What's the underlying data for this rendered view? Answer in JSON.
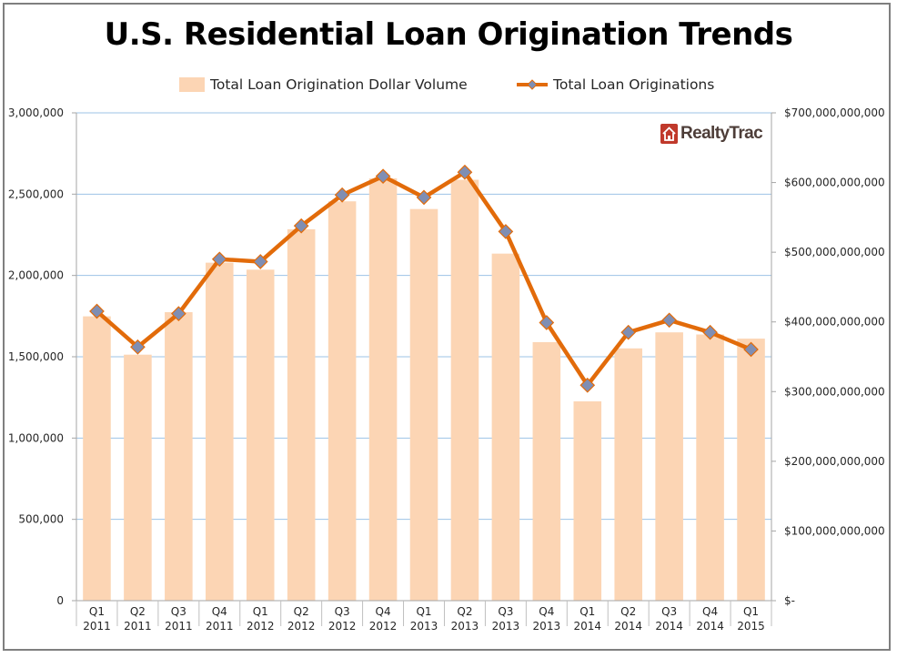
{
  "brand": "RealtyTrac",
  "chart_data": {
    "type": "bar+line",
    "title": "U.S. Residential Loan Origination Trends",
    "categories": [
      [
        "Q1",
        "2011"
      ],
      [
        "Q2",
        "2011"
      ],
      [
        "Q3",
        "2011"
      ],
      [
        "Q4",
        "2011"
      ],
      [
        "Q1",
        "2012"
      ],
      [
        "Q2",
        "2012"
      ],
      [
        "Q3",
        "2012"
      ],
      [
        "Q4",
        "2012"
      ],
      [
        "Q1",
        "2013"
      ],
      [
        "Q2",
        "2013"
      ],
      [
        "Q3",
        "2013"
      ],
      [
        "Q4",
        "2013"
      ],
      [
        "Q1",
        "2014"
      ],
      [
        "Q2",
        "2014"
      ],
      [
        "Q3",
        "2014"
      ],
      [
        "Q4",
        "2014"
      ],
      [
        "Q1",
        "2015"
      ]
    ],
    "series": [
      {
        "name": "Total Loan Origination Dollar Volume",
        "type": "bar",
        "axis": "right",
        "color": "#fcd5b4",
        "values": [
          408000000000,
          353000000000,
          414000000000,
          485000000000,
          475000000000,
          533000000000,
          573000000000,
          606000000000,
          562000000000,
          604000000000,
          498000000000,
          371000000000,
          286000000000,
          362000000000,
          385000000000,
          382000000000,
          376000000000
        ]
      },
      {
        "name": "Total Loan Originations",
        "type": "line",
        "axis": "left",
        "color": "#e26b0a",
        "marker_color": "#7f8eb3",
        "values": [
          1780000,
          1560000,
          1765000,
          2100000,
          2085000,
          2305000,
          2495000,
          2610000,
          2480000,
          2635000,
          2270000,
          1710000,
          1325000,
          1650000,
          1725000,
          1650000,
          1545000
        ]
      }
    ],
    "y_left": {
      "range": [
        0,
        3000000
      ],
      "ticks": [
        0,
        500000,
        1000000,
        1500000,
        2000000,
        2500000,
        3000000
      ],
      "tick_labels": [
        "0",
        "500,000",
        "1,000,000",
        "1,500,000",
        "2,000,000",
        "2,500,000",
        "3,000,000"
      ]
    },
    "y_right": {
      "range": [
        0,
        700000000000
      ],
      "ticks": [
        0,
        100000000000,
        200000000000,
        300000000000,
        400000000000,
        500000000000,
        600000000000,
        700000000000
      ],
      "tick_labels": [
        "$-",
        "$100,000,000,000",
        "$200,000,000,000",
        "$300,000,000,000",
        "$400,000,000,000",
        "$500,000,000,000",
        "$600,000,000,000",
        "$700,000,000,000"
      ]
    },
    "grid": true,
    "legend": "top"
  }
}
